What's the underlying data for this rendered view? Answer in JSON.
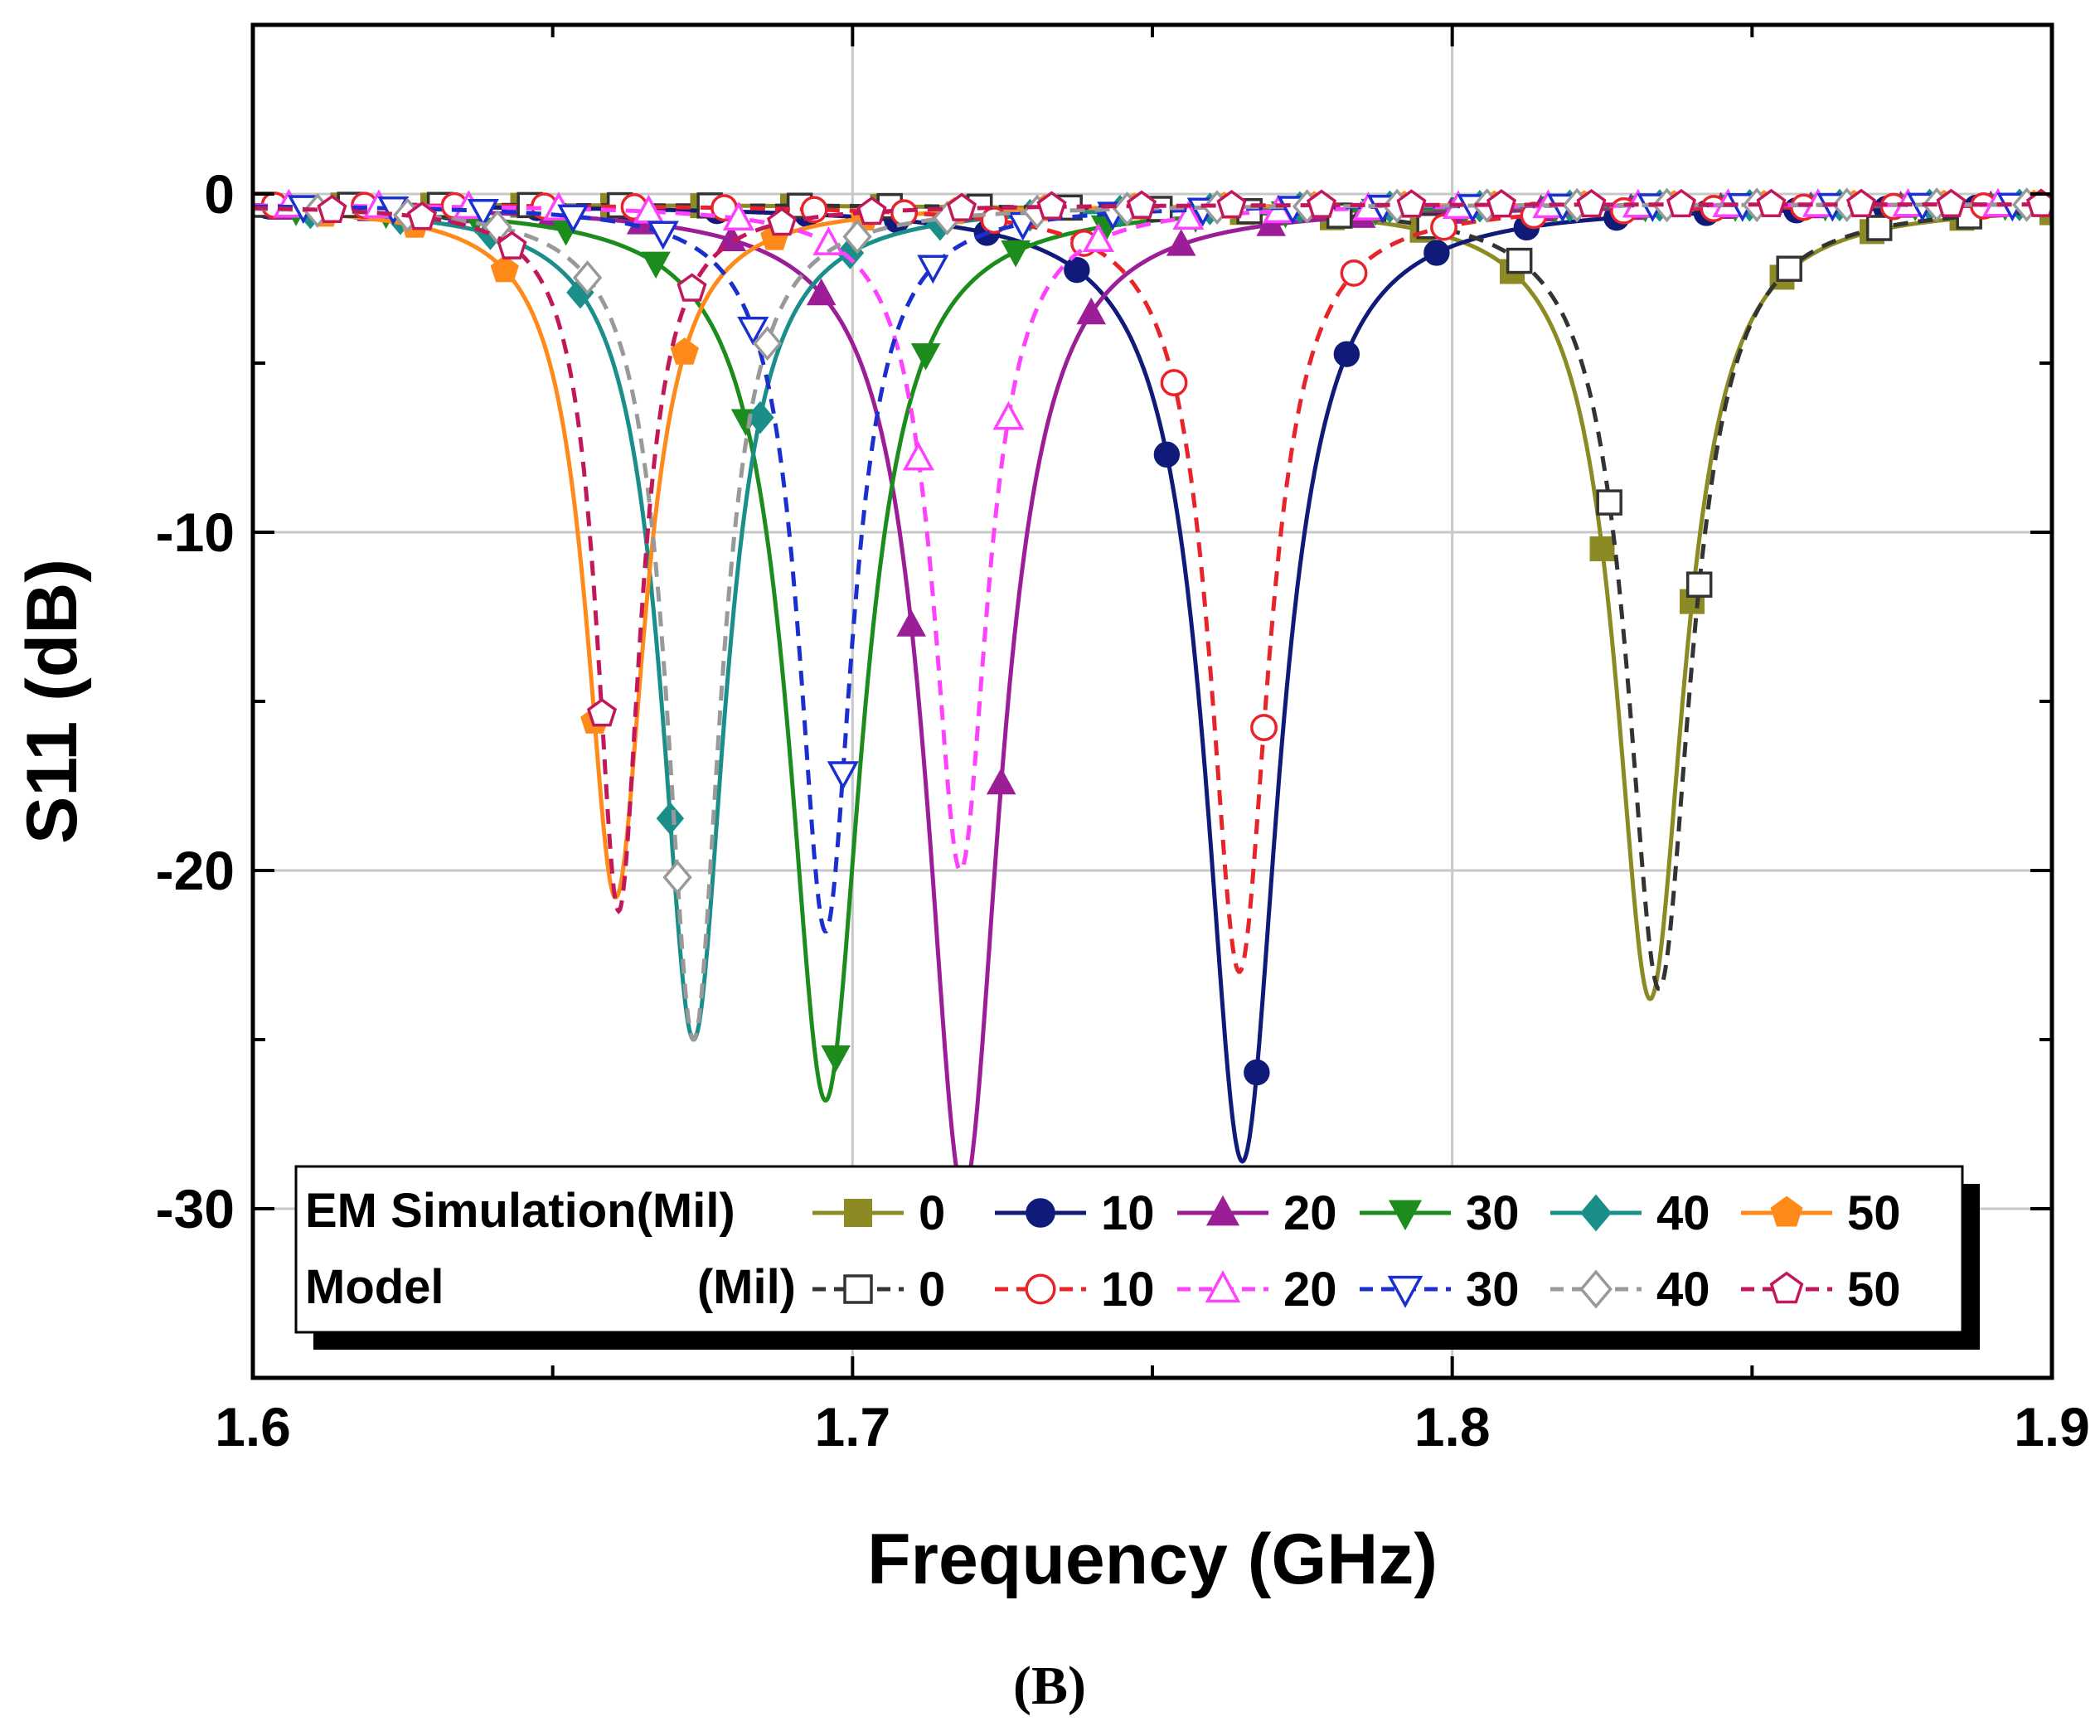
{
  "chart_data": {
    "type": "line",
    "title": "",
    "xlabel": "Frequency (GHz)",
    "ylabel": "S11 (dB)",
    "xlim": [
      1.6,
      1.9
    ],
    "ylim": [
      -35,
      5
    ],
    "xticks": [
      1.6,
      1.7,
      1.8,
      1.9
    ],
    "xtick_labels": [
      "1.6",
      "1.7",
      "1.8",
      "1.9"
    ],
    "yticks": [
      0,
      -10,
      -20,
      -30
    ],
    "ytick_labels": [
      "0",
      "-10",
      "-20",
      "-30"
    ],
    "grid": true,
    "caption": "(B)",
    "legend": {
      "placement": "bottom",
      "row_labels": [
        "EM Simulation(Mil)",
        "Model",
        "(Mil)"
      ]
    },
    "series": [
      {
        "name": "EM Simulation 0",
        "group": "EM Simulation",
        "label": "0",
        "style": "solid",
        "marker": "square",
        "filled": true,
        "color": "#8b8a24",
        "f0": 1.833,
        "min": -23.8,
        "width": 0.007
      },
      {
        "name": "EM Simulation 10",
        "group": "EM Simulation",
        "label": "10",
        "style": "solid",
        "marker": "circle",
        "filled": true,
        "color": "#101a78",
        "f0": 1.765,
        "min": -28.6,
        "width": 0.0075
      },
      {
        "name": "EM Simulation 20",
        "group": "EM Simulation",
        "label": "20",
        "style": "solid",
        "marker": "triangle-up",
        "filled": true,
        "color": "#9c1e96",
        "f0": 1.7185,
        "min": -29.5,
        "width": 0.0075
      },
      {
        "name": "EM Simulation 30",
        "group": "EM Simulation",
        "label": "30",
        "style": "solid",
        "marker": "triangle-down",
        "filled": true,
        "color": "#1c8c1c",
        "f0": 1.6955,
        "min": -26.8,
        "width": 0.0075
      },
      {
        "name": "EM Simulation 40",
        "group": "EM Simulation",
        "label": "40",
        "style": "solid",
        "marker": "diamond",
        "filled": true,
        "color": "#1a8f8a",
        "f0": 1.6735,
        "min": -25.0,
        "width": 0.0065
      },
      {
        "name": "EM Simulation 50",
        "group": "EM Simulation",
        "label": "50",
        "style": "solid",
        "marker": "pentagon",
        "filled": true,
        "color": "#ff8a1a",
        "f0": 1.6605,
        "min": -20.8,
        "width": 0.006
      },
      {
        "name": "Model 0",
        "group": "Model",
        "label": "0",
        "style": "dashed",
        "marker": "square",
        "filled": false,
        "color": "#333333",
        "f0": 1.8345,
        "min": -23.5,
        "width": 0.0065
      },
      {
        "name": "Model 10",
        "group": "Model",
        "label": "10",
        "style": "dashed",
        "marker": "circle",
        "filled": false,
        "color": "#e8232a",
        "f0": 1.7645,
        "min": -23.0,
        "width": 0.006
      },
      {
        "name": "Model 20",
        "group": "Model",
        "label": "20",
        "style": "dashed",
        "marker": "triangle-up",
        "filled": false,
        "color": "#ff40ff",
        "f0": 1.718,
        "min": -20.0,
        "width": 0.0055
      },
      {
        "name": "Model 30",
        "group": "Model",
        "label": "30",
        "style": "dashed",
        "marker": "triangle-down",
        "filled": false,
        "color": "#1a2fd0",
        "f0": 1.6955,
        "min": -21.8,
        "width": 0.0055
      },
      {
        "name": "Model 40",
        "group": "Model",
        "label": "40",
        "style": "dashed",
        "marker": "diamond",
        "filled": false,
        "color": "#999999",
        "f0": 1.6735,
        "min": -25.0,
        "width": 0.0055
      },
      {
        "name": "Model 50",
        "group": "Model",
        "label": "50",
        "style": "dashed",
        "marker": "pentagon",
        "filled": false,
        "color": "#c2185b",
        "f0": 1.661,
        "min": -21.2,
        "width": 0.0045
      }
    ]
  }
}
